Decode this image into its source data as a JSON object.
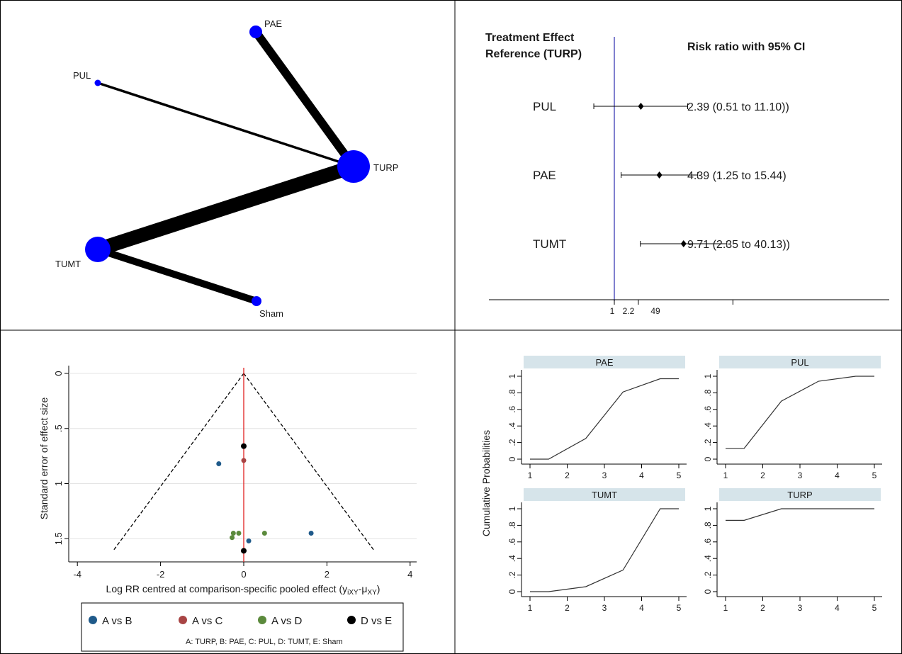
{
  "network": {
    "nodes": [
      {
        "label": "PAE"
      },
      {
        "label": "PUL"
      },
      {
        "label": "TURP"
      },
      {
        "label": "TUMT"
      },
      {
        "label": "Sham"
      }
    ],
    "edges": [
      {
        "from": "PAE",
        "to": "TURP"
      },
      {
        "from": "PUL",
        "to": "TURP"
      },
      {
        "from": "TUMT",
        "to": "TURP"
      },
      {
        "from": "TUMT",
        "to": "Sham"
      }
    ]
  },
  "forest": {
    "header_left_line1": "Treatment Effect",
    "header_left_line2": "Reference (TURP)",
    "header_right": "Risk ratio with 95% CI",
    "rows": [
      {
        "label": "PUL",
        "rr": 2.39,
        "lo": 0.51,
        "hi": 11.1,
        "text": "2.39 (0.51 to 11.10))"
      },
      {
        "label": "PAE",
        "rr": 4.39,
        "lo": 1.25,
        "hi": 15.44,
        "text": "4.39 (1.25 to 15.44)"
      },
      {
        "label": "TUMT",
        "rr": 9.71,
        "lo": 2.35,
        "hi": 40.13,
        "text": "9.71 (2.35 to 40.13))"
      }
    ],
    "ticks": [
      "1",
      "2.2",
      "49"
    ]
  },
  "funnel": {
    "ylabel": "Standard error of effect size",
    "xlabel": "Log RR centred at comparison-specific pooled effect (y",
    "xlabel_sub1": "iXY",
    "xlabel_mid": "-μ",
    "xlabel_sub2": "XY",
    "xlabel_end": ")",
    "xticks": [
      "-4",
      "-2",
      "0",
      "2",
      "4"
    ],
    "yticks": [
      "0",
      ".5",
      "1",
      "1.5"
    ],
    "legend": [
      {
        "label": "A vs B",
        "color": "#1f5a8a"
      },
      {
        "label": "A vs C",
        "color": "#a84444"
      },
      {
        "label": "A vs D",
        "color": "#5b8a3c"
      },
      {
        "label": "D vs E",
        "color": "#000000"
      }
    ],
    "legend_note": "A: TURP, B: PAE, C: PUL, D: TUMT, E: Sham"
  },
  "cumulative": {
    "ylabel": "Cumulative  Probabilities",
    "xticks": [
      "1",
      "2",
      "3",
      "4",
      "5"
    ],
    "yticks": [
      "0",
      ".2",
      ".4",
      ".6",
      ".8",
      "1"
    ],
    "panel_titles": [
      "PAE",
      "PUL",
      "TUMT",
      "TURP"
    ]
  },
  "chart_data": [
    {
      "type": "network",
      "nodes": [
        "PAE",
        "PUL",
        "TURP",
        "TUMT",
        "Sham"
      ],
      "edges": [
        [
          "PAE",
          "TURP"
        ],
        [
          "PUL",
          "TURP"
        ],
        [
          "TUMT",
          "TURP"
        ],
        [
          "TUMT",
          "Sham"
        ]
      ]
    },
    {
      "type": "forest",
      "reference": "TURP",
      "measure": "Risk ratio with 95% CI",
      "rows": [
        {
          "label": "PUL",
          "rr": 2.39,
          "lo": 0.51,
          "hi": 11.1
        },
        {
          "label": "PAE",
          "rr": 4.39,
          "lo": 1.25,
          "hi": 15.44
        },
        {
          "label": "TUMT",
          "rr": 9.71,
          "lo": 2.35,
          "hi": 40.13
        }
      ],
      "xscale": "log"
    },
    {
      "type": "scatter",
      "xlabel": "Log RR centred at comparison-specific pooled effect (yiXY-μXY)",
      "ylabel": "Standard error of effect size",
      "xlim": [
        -4,
        4
      ],
      "ylim": [
        1.6,
        0
      ],
      "series": [
        {
          "name": "A vs B",
          "color": "#1f5a8a",
          "points": [
            [
              -0.6,
              0.82
            ],
            [
              1.62,
              1.45
            ],
            [
              0.12,
              1.52
            ]
          ]
        },
        {
          "name": "A vs C",
          "color": "#a84444",
          "points": [
            [
              0.0,
              0.79
            ]
          ]
        },
        {
          "name": "A vs D",
          "color": "#5b8a3c",
          "points": [
            [
              -0.25,
              1.45
            ],
            [
              -0.12,
              1.45
            ],
            [
              -0.28,
              1.49
            ],
            [
              0.5,
              1.45
            ]
          ]
        },
        {
          "name": "D vs E",
          "color": "#000000",
          "points": [
            [
              0.0,
              0.66
            ],
            [
              0.0,
              1.61
            ]
          ]
        }
      ],
      "funnel_limits": "dashed pseudo 95% CI",
      "reference_line_x": 0
    },
    {
      "type": "line",
      "ylabel": "Cumulative  Probabilities",
      "x": [
        1,
        1.5,
        2.5,
        3.5,
        4.5,
        5
      ],
      "ylim": [
        0,
        1
      ],
      "series": [
        {
          "name": "PAE",
          "values": [
            0.0,
            0.0,
            0.25,
            0.81,
            0.97,
            0.97
          ]
        },
        {
          "name": "PUL",
          "values": [
            0.13,
            0.13,
            0.7,
            0.94,
            1.0,
            1.0
          ]
        },
        {
          "name": "TUMT",
          "values": [
            0.0,
            0.0,
            0.06,
            0.26,
            1.0,
            1.0
          ]
        },
        {
          "name": "TURP",
          "values": [
            0.86,
            0.86,
            1.0,
            1.0,
            1.0,
            1.0
          ]
        }
      ]
    }
  ]
}
